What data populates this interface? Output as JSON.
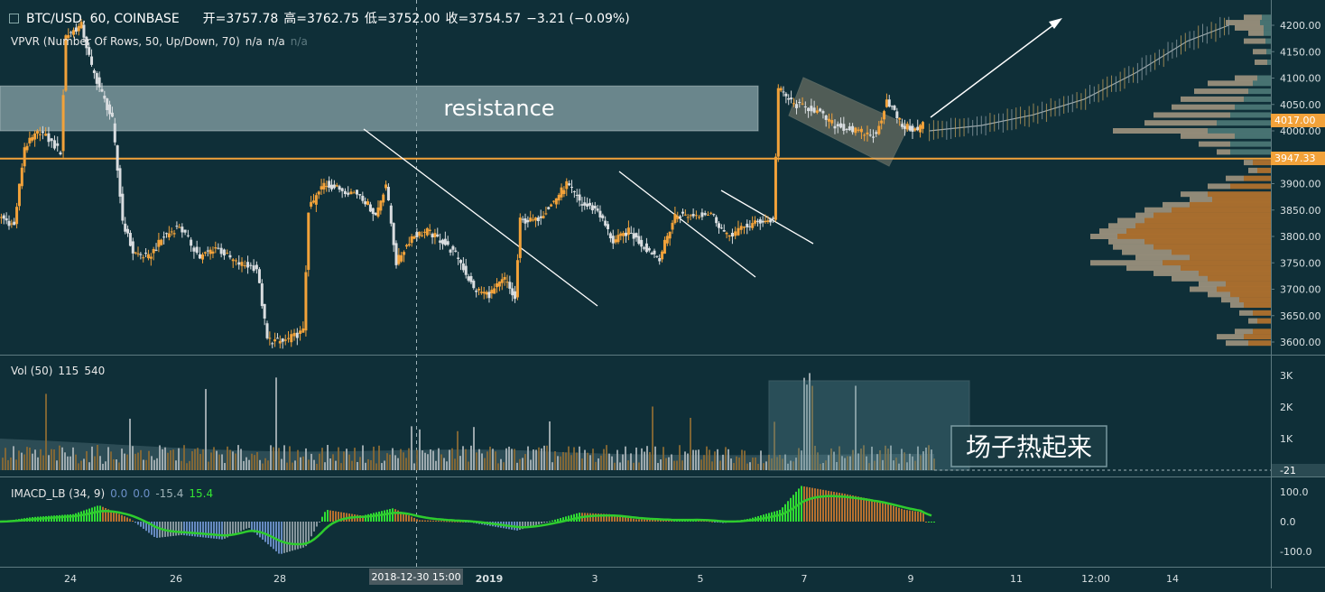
{
  "header": {
    "symbol": "BTC/USD, 60, COINBASE",
    "open": "开=3757.78",
    "high": "高=3762.75",
    "low": "低=3752.00",
    "close": "收=3754.57",
    "change": "−3.21 (−0.09%)"
  },
  "vpvr": {
    "label": "VPVR (Number Of Rows, 50, Up/Down, 70)",
    "v1": "n/a",
    "v2": "n/a",
    "v3": "n/a"
  },
  "volume": {
    "label": "Vol (50)",
    "v1": "115",
    "v2": "540",
    "last_label": "-21"
  },
  "macd": {
    "label": "IMACD_LB (34, 9)",
    "v1": "0.0",
    "v2": "0.0",
    "v3": "-15.4",
    "v4": "15.4"
  },
  "annotations": {
    "resistance": "resistance",
    "hot": "场子热起来"
  },
  "price_tags": {
    "current": "4017.00",
    "level": "3947.33",
    "current_value": 4017.0,
    "level_value": 3947.33
  },
  "colors": {
    "background": "#0f2f38",
    "up": "#f2a23a",
    "down": "#d9dde0",
    "resistance_line": "#f2a23a",
    "macd_signal": "#2ecc2e",
    "macd_up": "#33e633",
    "macd_brown": "#c0742e",
    "macd_blue": "#6b8fc7",
    "macd_gray": "#8a9aa0"
  },
  "chart_data": [
    {
      "type": "candlestick",
      "title": "BTC/USD, 60, COINBASE",
      "y_axis_ticks": [
        4200.0,
        4150.0,
        4100.0,
        4050.0,
        4000.0,
        3950.0,
        3900.0,
        3850.0,
        3800.0,
        3750.0,
        3700.0,
        3650.0,
        3600.0
      ],
      "ylim": [
        3580,
        4230
      ],
      "x_tick_labels": [
        "24",
        "26",
        "28",
        "2018-12-30  15:00",
        "2019",
        "3",
        "5",
        "7",
        "9",
        "11",
        "12:00",
        "14"
      ],
      "highlighted_x_label": "2018-12-30  15:00",
      "key_points": [
        {
          "day": 23.0,
          "price": 3840
        },
        {
          "day": 23.3,
          "price": 3820
        },
        {
          "day": 23.5,
          "price": 3970
        },
        {
          "day": 23.8,
          "price": 4000
        },
        {
          "day": 24.2,
          "price": 3960
        },
        {
          "day": 24.3,
          "price": 4180
        },
        {
          "day": 24.6,
          "price": 4200
        },
        {
          "day": 24.8,
          "price": 4120
        },
        {
          "day": 25.0,
          "price": 4070
        },
        {
          "day": 25.2,
          "price": 4020
        },
        {
          "day": 25.4,
          "price": 3830
        },
        {
          "day": 25.6,
          "price": 3770
        },
        {
          "day": 25.9,
          "price": 3760
        },
        {
          "day": 26.2,
          "price": 3800
        },
        {
          "day": 26.5,
          "price": 3820
        },
        {
          "day": 26.9,
          "price": 3760
        },
        {
          "day": 27.2,
          "price": 3780
        },
        {
          "day": 27.6,
          "price": 3750
        },
        {
          "day": 28.0,
          "price": 3740
        },
        {
          "day": 28.2,
          "price": 3605
        },
        {
          "day": 28.5,
          "price": 3600
        },
        {
          "day": 28.9,
          "price": 3620
        },
        {
          "day": 29.0,
          "price": 3850
        },
        {
          "day": 29.3,
          "price": 3900
        },
        {
          "day": 29.6,
          "price": 3890
        },
        {
          "day": 30.0,
          "price": 3880
        },
        {
          "day": 30.3,
          "price": 3840
        },
        {
          "day": 30.5,
          "price": 3900
        },
        {
          "day": 30.7,
          "price": 3750
        },
        {
          "day": 31.0,
          "price": 3800
        },
        {
          "day": 31.3,
          "price": 3810
        },
        {
          "day": 31.6,
          "price": 3790
        },
        {
          "day": 31.9,
          "price": 3760
        },
        {
          "day": 32.2,
          "price": 3700
        },
        {
          "day": 32.5,
          "price": 3690
        },
        {
          "day": 32.8,
          "price": 3720
        },
        {
          "day": 33.0,
          "price": 3680
        },
        {
          "day": 33.1,
          "price": 3830
        },
        {
          "day": 33.4,
          "price": 3830
        },
        {
          "day": 33.7,
          "price": 3860
        },
        {
          "day": 34.0,
          "price": 3900
        },
        {
          "day": 34.3,
          "price": 3860
        },
        {
          "day": 34.6,
          "price": 3850
        },
        {
          "day": 34.9,
          "price": 3790
        },
        {
          "day": 35.2,
          "price": 3810
        },
        {
          "day": 35.5,
          "price": 3780
        },
        {
          "day": 35.8,
          "price": 3760
        },
        {
          "day": 36.1,
          "price": 3840
        },
        {
          "day": 36.4,
          "price": 3840
        },
        {
          "day": 36.8,
          "price": 3845
        },
        {
          "day": 37.1,
          "price": 3800
        },
        {
          "day": 37.5,
          "price": 3820
        },
        {
          "day": 37.8,
          "price": 3830
        },
        {
          "day": 38.0,
          "price": 3830
        },
        {
          "day": 38.1,
          "price": 4080
        },
        {
          "day": 38.4,
          "price": 4050
        },
        {
          "day": 38.8,
          "price": 4040
        },
        {
          "day": 39.2,
          "price": 4010
        },
        {
          "day": 39.6,
          "price": 4000
        },
        {
          "day": 40.0,
          "price": 3990
        },
        {
          "day": 40.2,
          "price": 4060
        },
        {
          "day": 40.5,
          "price": 4010
        },
        {
          "day": 40.8,
          "price": 4000
        },
        {
          "day": 40.9,
          "price": 4017
        }
      ],
      "projection": [
        {
          "day": 41.0,
          "price": 4000
        },
        {
          "day": 42.0,
          "price": 4010
        },
        {
          "day": 43.0,
          "price": 4030
        },
        {
          "day": 44.0,
          "price": 4060
        },
        {
          "day": 45.0,
          "price": 4110
        },
        {
          "day": 46.0,
          "price": 4170
        },
        {
          "day": 46.8,
          "price": 4200
        }
      ],
      "resistance_zone": [
        4000,
        4085
      ],
      "support_level": 3947.33,
      "last_price": 4017.0
    },
    {
      "type": "bar",
      "title": "Vol (50)",
      "y_axis_ticks": [
        "3K",
        "2K",
        "1K"
      ],
      "ylim": [
        0,
        3500
      ]
    },
    {
      "type": "bar",
      "title": "IMACD_LB (34, 9)",
      "y_axis_ticks": [
        100.0,
        0.0,
        -100.0
      ],
      "ylim": [
        -130,
        130
      ]
    }
  ]
}
